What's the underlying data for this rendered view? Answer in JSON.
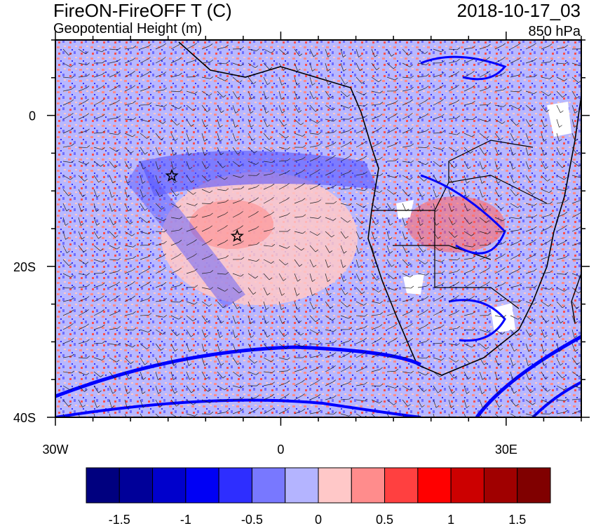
{
  "title_left": "FireON-FireOFF T (C)",
  "subtitle_left": "Geopotential Height (m)",
  "title_right": "2018-10-17_03",
  "subtitle_right": "850 hPa",
  "axes": {
    "y_ticks": [
      {
        "label": "0",
        "lat": 0
      },
      {
        "label": "20S",
        "lat": -20
      },
      {
        "label": "40S",
        "lat": -40
      }
    ],
    "x_ticks": [
      {
        "label": "30W",
        "lon": -30
      },
      {
        "label": "0",
        "lon": 0
      },
      {
        "label": "30E",
        "lon": 30
      }
    ],
    "lon_range": [
      -30,
      40
    ],
    "lat_range": [
      -40,
      10
    ]
  },
  "markers": [
    {
      "name": "star-marker",
      "lon": -14.5,
      "lat": -8
    },
    {
      "name": "star-marker",
      "lon": -5.8,
      "lat": -16
    }
  ],
  "colorbar": {
    "colors": [
      "#00007f",
      "#000099",
      "#0000cc",
      "#0000f5",
      "#2e2eff",
      "#7878ff",
      "#b4b4ff",
      "#ffc8c8",
      "#ff8c8c",
      "#ff4040",
      "#ff0000",
      "#cc0000",
      "#a00000",
      "#800000"
    ],
    "labels": [
      "-1.5",
      "-1",
      "-0.5",
      "0",
      "0.5",
      "1",
      "1.5"
    ]
  },
  "colors": {
    "background_field": "#b8b8ff",
    "warm_field": "#ffc8c8",
    "contour": "#0000ff",
    "coast": "#000000"
  }
}
